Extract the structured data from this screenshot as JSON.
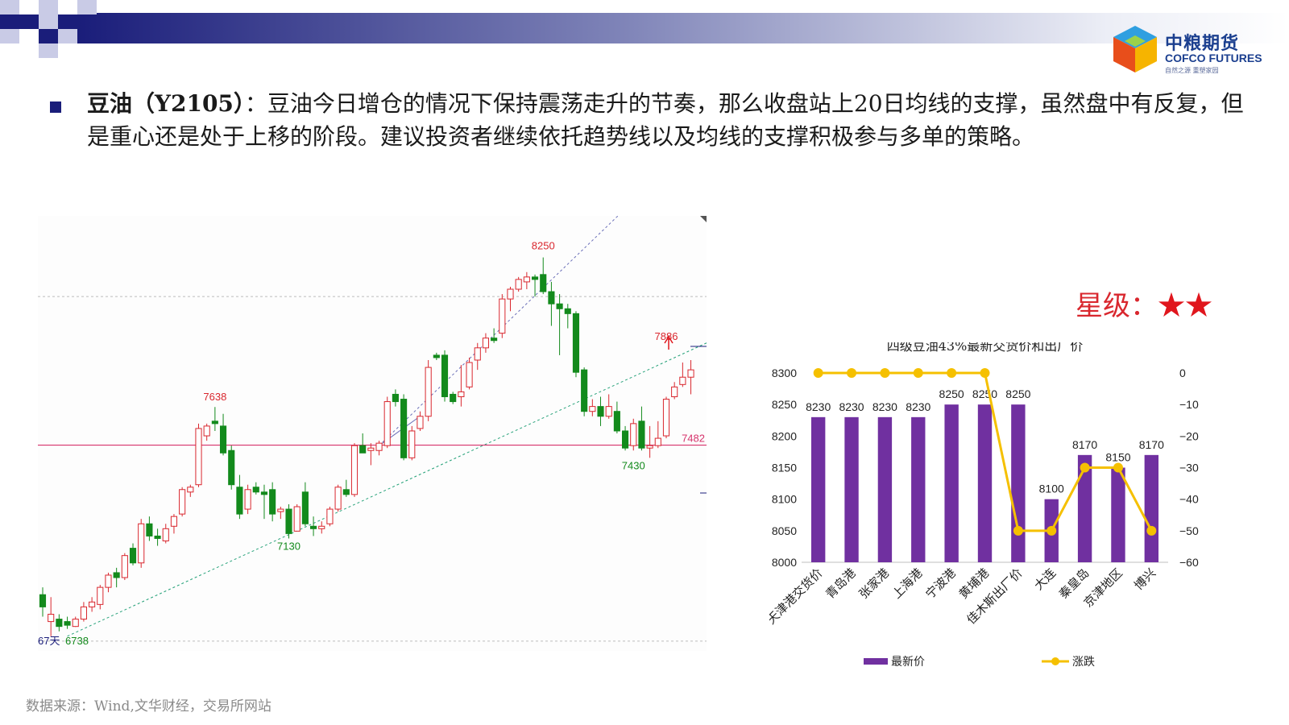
{
  "slide": {
    "bullet_title": "豆油（Y2105）",
    "bullet_text": "：豆油今日增仓的情况下保持震荡走升的节奏，那么收盘站上20日均线的支撑，虽然盘中有反复，但是重心还是处于上移的阶段。建议投资者继续依托趋势线以及均线的支撑积极参与多单的策略。",
    "rating_label": "星级：",
    "rating_stars": "★★",
    "source": "数据来源：Wind,文华财经，交易所网站"
  },
  "logo": {
    "cn": "中粮期货",
    "en": "COFCO FUTURES",
    "sub": "自然之源  重塑家园"
  },
  "colors": {
    "header_dark": "#1a1d7a",
    "bar_purple": "#7030a0",
    "line_yellow": "#f5c000",
    "candle_up": "#d9272e",
    "candle_down": "#138a1c",
    "support_line": "#d6336c"
  },
  "kline_labels": {
    "high": "8250",
    "peak_left": "7638",
    "low_mid": "7130",
    "recent_high": "7886",
    "recent_low": "7430",
    "start_low": "6738",
    "start_prefix": "67天",
    "support_value": "7482"
  },
  "chart_data": [
    {
      "type": "candlestick",
      "title": "",
      "candles": [
        {
          "o": 6870,
          "h": 6900,
          "l": 6780,
          "c": 6820
        },
        {
          "o": 6760,
          "h": 6860,
          "l": 6700,
          "c": 6790
        },
        {
          "o": 6770,
          "h": 6790,
          "l": 6720,
          "c": 6740
        },
        {
          "o": 6760,
          "h": 6780,
          "l": 6730,
          "c": 6745
        },
        {
          "o": 6740,
          "h": 6780,
          "l": 6738,
          "c": 6770
        },
        {
          "o": 6770,
          "h": 6840,
          "l": 6760,
          "c": 6820
        },
        {
          "o": 6820,
          "h": 6860,
          "l": 6800,
          "c": 6840
        },
        {
          "o": 6830,
          "h": 6910,
          "l": 6810,
          "c": 6900
        },
        {
          "o": 6900,
          "h": 6960,
          "l": 6880,
          "c": 6950
        },
        {
          "o": 6960,
          "h": 6980,
          "l": 6900,
          "c": 6940
        },
        {
          "o": 6940,
          "h": 7040,
          "l": 6930,
          "c": 7030
        },
        {
          "o": 7060,
          "h": 7080,
          "l": 6990,
          "c": 7000
        },
        {
          "o": 7000,
          "h": 7180,
          "l": 6980,
          "c": 7160
        },
        {
          "o": 7160,
          "h": 7190,
          "l": 7090,
          "c": 7110
        },
        {
          "o": 7110,
          "h": 7140,
          "l": 7070,
          "c": 7100
        },
        {
          "o": 7090,
          "h": 7160,
          "l": 7080,
          "c": 7140
        },
        {
          "o": 7150,
          "h": 7200,
          "l": 7120,
          "c": 7190
        },
        {
          "o": 7200,
          "h": 7310,
          "l": 7190,
          "c": 7300
        },
        {
          "o": 7290,
          "h": 7320,
          "l": 7270,
          "c": 7310
        },
        {
          "o": 7320,
          "h": 7570,
          "l": 7310,
          "c": 7550
        },
        {
          "o": 7520,
          "h": 7570,
          "l": 7500,
          "c": 7560
        },
        {
          "o": 7580,
          "h": 7638,
          "l": 7540,
          "c": 7570
        },
        {
          "o": 7560,
          "h": 7610,
          "l": 7440,
          "c": 7450
        },
        {
          "o": 7460,
          "h": 7480,
          "l": 7300,
          "c": 7320
        },
        {
          "o": 7310,
          "h": 7360,
          "l": 7180,
          "c": 7200
        },
        {
          "o": 7220,
          "h": 7320,
          "l": 7200,
          "c": 7300
        },
        {
          "o": 7310,
          "h": 7330,
          "l": 7280,
          "c": 7290
        },
        {
          "o": 7290,
          "h": 7320,
          "l": 7180,
          "c": 7280
        },
        {
          "o": 7300,
          "h": 7330,
          "l": 7170,
          "c": 7200
        },
        {
          "o": 7210,
          "h": 7230,
          "l": 7180,
          "c": 7220
        },
        {
          "o": 7220,
          "h": 7240,
          "l": 7100,
          "c": 7120
        },
        {
          "o": 7130,
          "h": 7240,
          "l": 7130,
          "c": 7230
        },
        {
          "o": 7290,
          "h": 7330,
          "l": 7150,
          "c": 7160
        },
        {
          "o": 7150,
          "h": 7190,
          "l": 7110,
          "c": 7140
        },
        {
          "o": 7140,
          "h": 7170,
          "l": 7120,
          "c": 7150
        },
        {
          "o": 7160,
          "h": 7230,
          "l": 7150,
          "c": 7220
        },
        {
          "o": 7220,
          "h": 7320,
          "l": 7210,
          "c": 7310
        },
        {
          "o": 7300,
          "h": 7340,
          "l": 7270,
          "c": 7280
        },
        {
          "o": 7280,
          "h": 7490,
          "l": 7270,
          "c": 7480
        },
        {
          "o": 7480,
          "h": 7530,
          "l": 7450,
          "c": 7450
        },
        {
          "o": 7460,
          "h": 7490,
          "l": 7400,
          "c": 7470
        },
        {
          "o": 7460,
          "h": 7500,
          "l": 7440,
          "c": 7490
        },
        {
          "o": 7480,
          "h": 7680,
          "l": 7470,
          "c": 7660
        },
        {
          "o": 7690,
          "h": 7710,
          "l": 7640,
          "c": 7660
        },
        {
          "o": 7670,
          "h": 7690,
          "l": 7420,
          "c": 7430
        },
        {
          "o": 7430,
          "h": 7560,
          "l": 7420,
          "c": 7540
        },
        {
          "o": 7550,
          "h": 7620,
          "l": 7540,
          "c": 7600
        },
        {
          "o": 7600,
          "h": 7830,
          "l": 7580,
          "c": 7800
        },
        {
          "o": 7850,
          "h": 7860,
          "l": 7830,
          "c": 7840
        },
        {
          "o": 7850,
          "h": 7870,
          "l": 7660,
          "c": 7680
        },
        {
          "o": 7690,
          "h": 7700,
          "l": 7650,
          "c": 7660
        },
        {
          "o": 7680,
          "h": 7810,
          "l": 7640,
          "c": 7700
        },
        {
          "o": 7720,
          "h": 7840,
          "l": 7710,
          "c": 7820
        },
        {
          "o": 7830,
          "h": 7900,
          "l": 7790,
          "c": 7880
        },
        {
          "o": 7880,
          "h": 7940,
          "l": 7860,
          "c": 7920
        },
        {
          "o": 7920,
          "h": 7960,
          "l": 7900,
          "c": 7910
        },
        {
          "o": 7940,
          "h": 8100,
          "l": 7920,
          "c": 8080
        },
        {
          "o": 8080,
          "h": 8130,
          "l": 8030,
          "c": 8120
        },
        {
          "o": 8120,
          "h": 8170,
          "l": 8110,
          "c": 8160
        },
        {
          "o": 8150,
          "h": 8190,
          "l": 8120,
          "c": 8170
        },
        {
          "o": 8170,
          "h": 8180,
          "l": 8090,
          "c": 8160
        },
        {
          "o": 8180,
          "h": 8250,
          "l": 8100,
          "c": 8110
        },
        {
          "o": 8110,
          "h": 8150,
          "l": 7970,
          "c": 8060
        },
        {
          "o": 8060,
          "h": 8100,
          "l": 7850,
          "c": 8040
        },
        {
          "o": 8040,
          "h": 8060,
          "l": 7960,
          "c": 8020
        },
        {
          "o": 8020,
          "h": 8030,
          "l": 7760,
          "c": 7780
        },
        {
          "o": 7790,
          "h": 7800,
          "l": 7600,
          "c": 7620
        },
        {
          "o": 7620,
          "h": 7670,
          "l": 7600,
          "c": 7640
        },
        {
          "o": 7640,
          "h": 7680,
          "l": 7560,
          "c": 7600
        },
        {
          "o": 7600,
          "h": 7690,
          "l": 7590,
          "c": 7640
        },
        {
          "o": 7620,
          "h": 7660,
          "l": 7530,
          "c": 7540
        },
        {
          "o": 7540,
          "h": 7560,
          "l": 7460,
          "c": 7470
        },
        {
          "o": 7480,
          "h": 7590,
          "l": 7460,
          "c": 7570
        },
        {
          "o": 7580,
          "h": 7640,
          "l": 7460,
          "c": 7470
        },
        {
          "o": 7470,
          "h": 7560,
          "l": 7430,
          "c": 7480
        },
        {
          "o": 7480,
          "h": 7580,
          "l": 7470,
          "c": 7510
        },
        {
          "o": 7520,
          "h": 7680,
          "l": 7510,
          "c": 7670
        },
        {
          "o": 7680,
          "h": 7740,
          "l": 7670,
          "c": 7720
        },
        {
          "o": 7730,
          "h": 7820,
          "l": 7720,
          "c": 7760
        },
        {
          "o": 7760,
          "h": 7830,
          "l": 7690,
          "c": 7790
        }
      ],
      "support_level": 7482,
      "xlabel": "",
      "ylabel": ""
    },
    {
      "type": "bar",
      "title": "四级豆油43%最新交货价和出厂价",
      "categories": [
        "天津港交货价",
        "青岛港",
        "张家港",
        "上海港",
        "宁波港",
        "黄埔港",
        "佳木斯出厂价",
        "大连",
        "秦皇岛",
        "京津地区",
        "博兴"
      ],
      "series": [
        {
          "name": "最新价",
          "type": "bar",
          "axis": "left",
          "values": [
            8230,
            8230,
            8230,
            8230,
            8250,
            8250,
            8250,
            8100,
            8170,
            8150,
            8170
          ]
        },
        {
          "name": "涨跌",
          "type": "line",
          "axis": "right",
          "values": [
            0,
            0,
            0,
            0,
            0,
            0,
            -50,
            -50,
            -30,
            -30,
            -50
          ]
        }
      ],
      "ylim_left": [
        8000,
        8300
      ],
      "yticks_left": [
        8000,
        8050,
        8100,
        8150,
        8200,
        8250,
        8300
      ],
      "ylim_right": [
        -60,
        0
      ],
      "yticks_right": [
        0,
        -10,
        -20,
        -30,
        -40,
        -50,
        -60
      ],
      "legend": "bottom"
    }
  ]
}
